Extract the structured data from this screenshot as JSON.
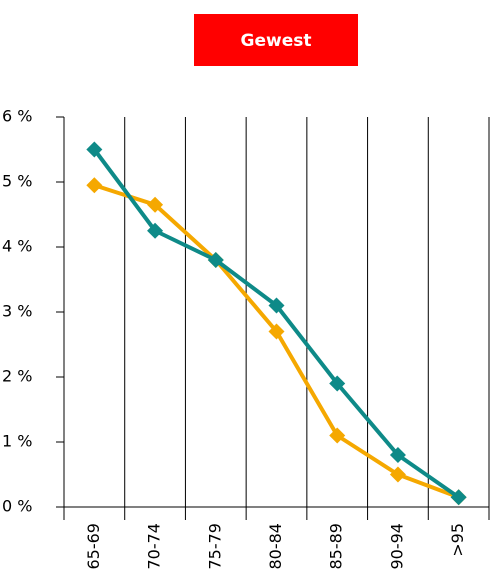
{
  "chart_data": {
    "type": "line",
    "title": "Gewest",
    "categories": [
      "65-69",
      "70-74",
      "75-79",
      "80-84",
      "85-89",
      "90-94",
      ">95"
    ],
    "series": [
      {
        "color": "#f5a800",
        "values": [
          4.95,
          4.65,
          3.8,
          2.7,
          1.1,
          0.5,
          0.15
        ]
      },
      {
        "color": "#0e8a88",
        "values": [
          5.5,
          4.25,
          3.8,
          3.1,
          1.9,
          0.8,
          0.15
        ]
      }
    ],
    "ylim": [
      0,
      6
    ],
    "yticks": [
      {
        "value": 0,
        "label": "0 %"
      },
      {
        "value": 1,
        "label": "1 %"
      },
      {
        "value": 2,
        "label": "2 %"
      },
      {
        "value": 3,
        "label": "3 %"
      },
      {
        "value": 4,
        "label": "4 %"
      },
      {
        "value": 5,
        "label": "5 %"
      },
      {
        "value": 6,
        "label": "6 %"
      }
    ],
    "title_color": "#ff0000"
  }
}
